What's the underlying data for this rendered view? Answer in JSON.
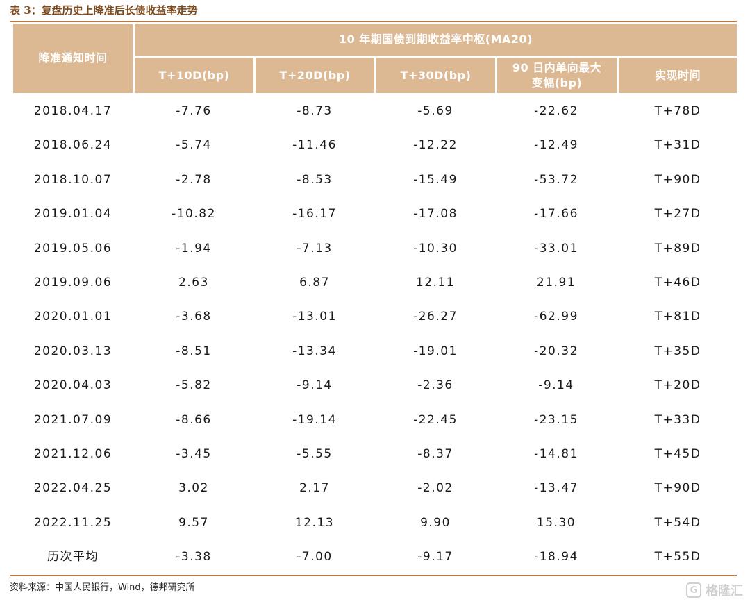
{
  "title": "表 3：复盘历史上降准后长债收益率走势",
  "header": {
    "first_col": "降准通知时间",
    "group": "10 年期国债到期收益率中枢(MA20)",
    "cols": [
      "T+10D(bp)",
      "T+20D(bp)",
      "T+30D(bp)",
      "90 日内单向最大变幅(bp)",
      "实现时间"
    ]
  },
  "rows": [
    [
      "2018.04.17",
      "-7.76",
      "-8.73",
      "-5.69",
      "-22.62",
      "T+78D"
    ],
    [
      "2018.06.24",
      "-5.74",
      "-11.46",
      "-12.22",
      "-12.49",
      "T+31D"
    ],
    [
      "2018.10.07",
      "-2.78",
      "-8.53",
      "-15.49",
      "-53.72",
      "T+90D"
    ],
    [
      "2019.01.04",
      "-10.82",
      "-16.17",
      "-17.08",
      "-17.66",
      "T+27D"
    ],
    [
      "2019.05.06",
      "-1.94",
      "-7.13",
      "-10.30",
      "-33.01",
      "T+89D"
    ],
    [
      "2019.09.06",
      "2.63",
      "6.87",
      "12.11",
      "21.91",
      "T+46D"
    ],
    [
      "2020.01.01",
      "-3.68",
      "-13.01",
      "-26.27",
      "-62.99",
      "T+81D"
    ],
    [
      "2020.03.13",
      "-8.51",
      "-13.34",
      "-19.01",
      "-20.32",
      "T+35D"
    ],
    [
      "2020.04.03",
      "-5.82",
      "-9.14",
      "-2.36",
      "-9.14",
      "T+20D"
    ],
    [
      "2021.07.09",
      "-8.66",
      "-19.14",
      "-22.45",
      "-23.15",
      "T+33D"
    ],
    [
      "2021.12.06",
      "-3.45",
      "-5.55",
      "-8.37",
      "-14.81",
      "T+45D"
    ],
    [
      "2022.04.25",
      "3.02",
      "2.17",
      "-2.02",
      "-13.47",
      "T+90D"
    ],
    [
      "2022.11.25",
      "9.57",
      "12.13",
      "9.90",
      "15.30",
      "T+54D"
    ],
    [
      "历次平均",
      "-3.38",
      "-7.00",
      "-9.17",
      "-18.94",
      "T+55D"
    ]
  ],
  "source": "资料来源：中国人民银行，Wind，德邦研究所",
  "watermark": {
    "text": "格隆汇",
    "icon": "gelonghui-logo-icon"
  },
  "colors": {
    "header_bg": "#dcb893",
    "header_text": "#ffffff",
    "rule": "#b97a4a",
    "title": "#7a4a1e"
  }
}
